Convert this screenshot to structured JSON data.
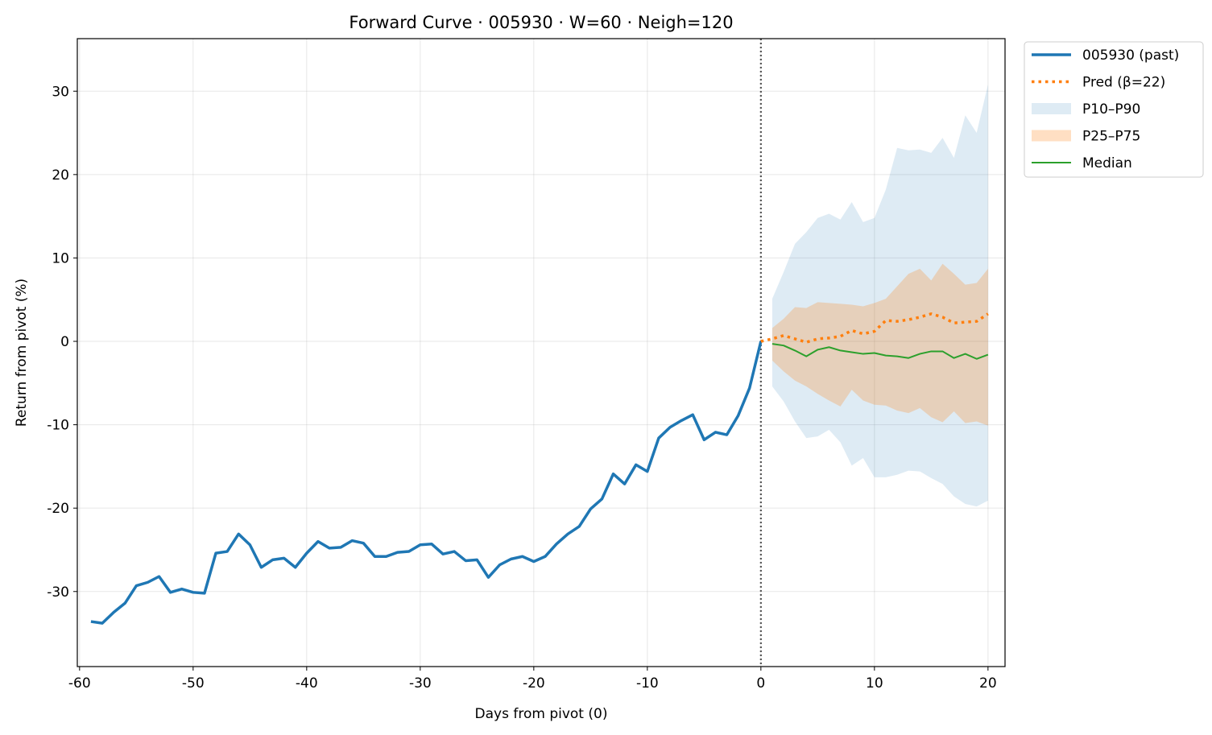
{
  "chart_data": {
    "type": "line",
    "title": "Forward Curve · 005930 · W=60 · Neigh=120",
    "xlabel": "Days from pivot (0)",
    "ylabel": "Return from pivot (%)",
    "xlim": [
      -60.2,
      21.5
    ],
    "ylim": [
      -39,
      36.3
    ],
    "xticks": [
      -60,
      -50,
      -40,
      -30,
      -20,
      -10,
      0,
      10,
      20
    ],
    "xtick_labels": [
      "-60",
      "-50",
      "-40",
      "-30",
      "-20",
      "-10",
      "0",
      "10",
      "20"
    ],
    "yticks": [
      -30,
      -20,
      -10,
      0,
      10,
      20,
      30
    ],
    "ytick_labels": [
      "-30",
      "-20",
      "-10",
      "0",
      "10",
      "20",
      "30"
    ],
    "grid": true,
    "legend_position": "outside-top-right",
    "pivot_line_x": 0,
    "series": [
      {
        "name": "005930 (past)",
        "kind": "line",
        "color": "#1f77b4",
        "x": [
          -59,
          -58,
          -57,
          -56,
          -55,
          -54,
          -53,
          -52,
          -51,
          -50,
          -49,
          -48,
          -47,
          -46,
          -45,
          -44,
          -43,
          -42,
          -41,
          -40,
          -39,
          -38,
          -37,
          -36,
          -35,
          -34,
          -33,
          -32,
          -31,
          -30,
          -29,
          -28,
          -27,
          -26,
          -25,
          -24,
          -23,
          -22,
          -21,
          -20,
          -19,
          -18,
          -17,
          -16,
          -15,
          -14,
          -13,
          -12,
          -11,
          -10,
          -9,
          -8,
          -7,
          -6,
          -5,
          -4,
          -3,
          -2,
          -1,
          0
        ],
        "y": [
          -33.6,
          -33.8,
          -32.5,
          -31.4,
          -29.3,
          -28.9,
          -28.2,
          -30.1,
          -29.7,
          -30.1,
          -30.2,
          -25.4,
          -25.2,
          -23.1,
          -24.4,
          -27.1,
          -26.2,
          -26.0,
          -27.1,
          -25.4,
          -24.0,
          -24.8,
          -24.7,
          -23.9,
          -24.2,
          -25.8,
          -25.8,
          -25.3,
          -25.2,
          -24.4,
          -24.3,
          -25.5,
          -25.2,
          -26.3,
          -26.2,
          -28.3,
          -26.8,
          -26.1,
          -25.8,
          -26.4,
          -25.8,
          -24.3,
          -23.1,
          -22.2,
          -20.1,
          -18.9,
          -15.9,
          -17.1,
          -14.8,
          -15.6,
          -11.6,
          -10.3,
          -9.5,
          -8.8,
          -11.8,
          -10.9,
          -11.2,
          -8.9,
          -5.6,
          0.0
        ]
      },
      {
        "name": "Pred (β=22)",
        "kind": "dotted",
        "color": "#ff7f0e",
        "x": [
          0,
          1,
          2,
          3,
          4,
          5,
          6,
          7,
          8,
          9,
          10,
          11,
          12,
          13,
          14,
          15,
          16,
          17,
          18,
          19,
          20
        ],
        "y": [
          0,
          0.3,
          0.7,
          0.3,
          -0.1,
          0.3,
          0.4,
          0.6,
          1.3,
          0.9,
          1.2,
          2.5,
          2.4,
          2.6,
          2.9,
          3.3,
          2.9,
          2.2,
          2.3,
          2.4,
          3.3
        ]
      },
      {
        "name": "P10–P90",
        "kind": "band",
        "color": "#1f77b4",
        "opacity": 0.15,
        "x": [
          1,
          2,
          3,
          4,
          5,
          6,
          7,
          8,
          9,
          10,
          11,
          12,
          13,
          14,
          15,
          16,
          17,
          18,
          19,
          20
        ],
        "lower": [
          -5.4,
          -7.2,
          -9.6,
          -11.6,
          -11.4,
          -10.6,
          -12.1,
          -14.9,
          -14.0,
          -16.3,
          -16.3,
          -16.0,
          -15.5,
          -15.6,
          -16.4,
          -17.1,
          -18.6,
          -19.5,
          -19.8,
          -19.1
        ],
        "upper": [
          5.1,
          8.3,
          11.7,
          13.1,
          14.8,
          15.3,
          14.6,
          16.7,
          14.3,
          14.8,
          18.2,
          23.2,
          22.9,
          23.0,
          22.6,
          24.4,
          22.0,
          27.1,
          25.0,
          30.8
        ]
      },
      {
        "name": "P25–P75",
        "kind": "band",
        "color": "#ff7f0e",
        "opacity": 0.25,
        "x": [
          1,
          2,
          3,
          4,
          5,
          6,
          7,
          8,
          9,
          10,
          11,
          12,
          13,
          14,
          15,
          16,
          17,
          18,
          19,
          20
        ],
        "lower": [
          -2.3,
          -3.6,
          -4.7,
          -5.4,
          -6.3,
          -7.1,
          -7.8,
          -5.8,
          -7.1,
          -7.6,
          -7.7,
          -8.3,
          -8.6,
          -8.0,
          -9.1,
          -9.7,
          -8.4,
          -9.8,
          -9.6,
          -10.1
        ],
        "upper": [
          1.6,
          2.7,
          4.1,
          4.0,
          4.7,
          4.6,
          4.5,
          4.4,
          4.2,
          4.6,
          5.1,
          6.6,
          8.1,
          8.7,
          7.3,
          9.3,
          8.1,
          6.8,
          7.0,
          8.7
        ]
      },
      {
        "name": "Median",
        "kind": "line",
        "color": "#2ca02c",
        "x": [
          1,
          2,
          3,
          4,
          5,
          6,
          7,
          8,
          9,
          10,
          11,
          12,
          13,
          14,
          15,
          16,
          17,
          18,
          19,
          20
        ],
        "y": [
          -0.3,
          -0.5,
          -1.1,
          -1.8,
          -1.0,
          -0.7,
          -1.1,
          -1.3,
          -1.5,
          -1.4,
          -1.7,
          -1.8,
          -2.0,
          -1.5,
          -1.2,
          -1.2,
          -2.0,
          -1.5,
          -2.1,
          -1.6
        ]
      }
    ],
    "legend": [
      {
        "label": "005930 (past)",
        "style": "line-thick",
        "color": "#1f77b4"
      },
      {
        "label": "Pred (β=22)",
        "style": "dotted",
        "color": "#ff7f0e"
      },
      {
        "label": "P10–P90",
        "style": "patch",
        "color": "#1f77b4",
        "opacity": 0.15
      },
      {
        "label": "P25–P75",
        "style": "patch",
        "color": "#ff7f0e",
        "opacity": 0.25
      },
      {
        "label": "Median",
        "style": "line-thin",
        "color": "#2ca02c"
      }
    ]
  }
}
